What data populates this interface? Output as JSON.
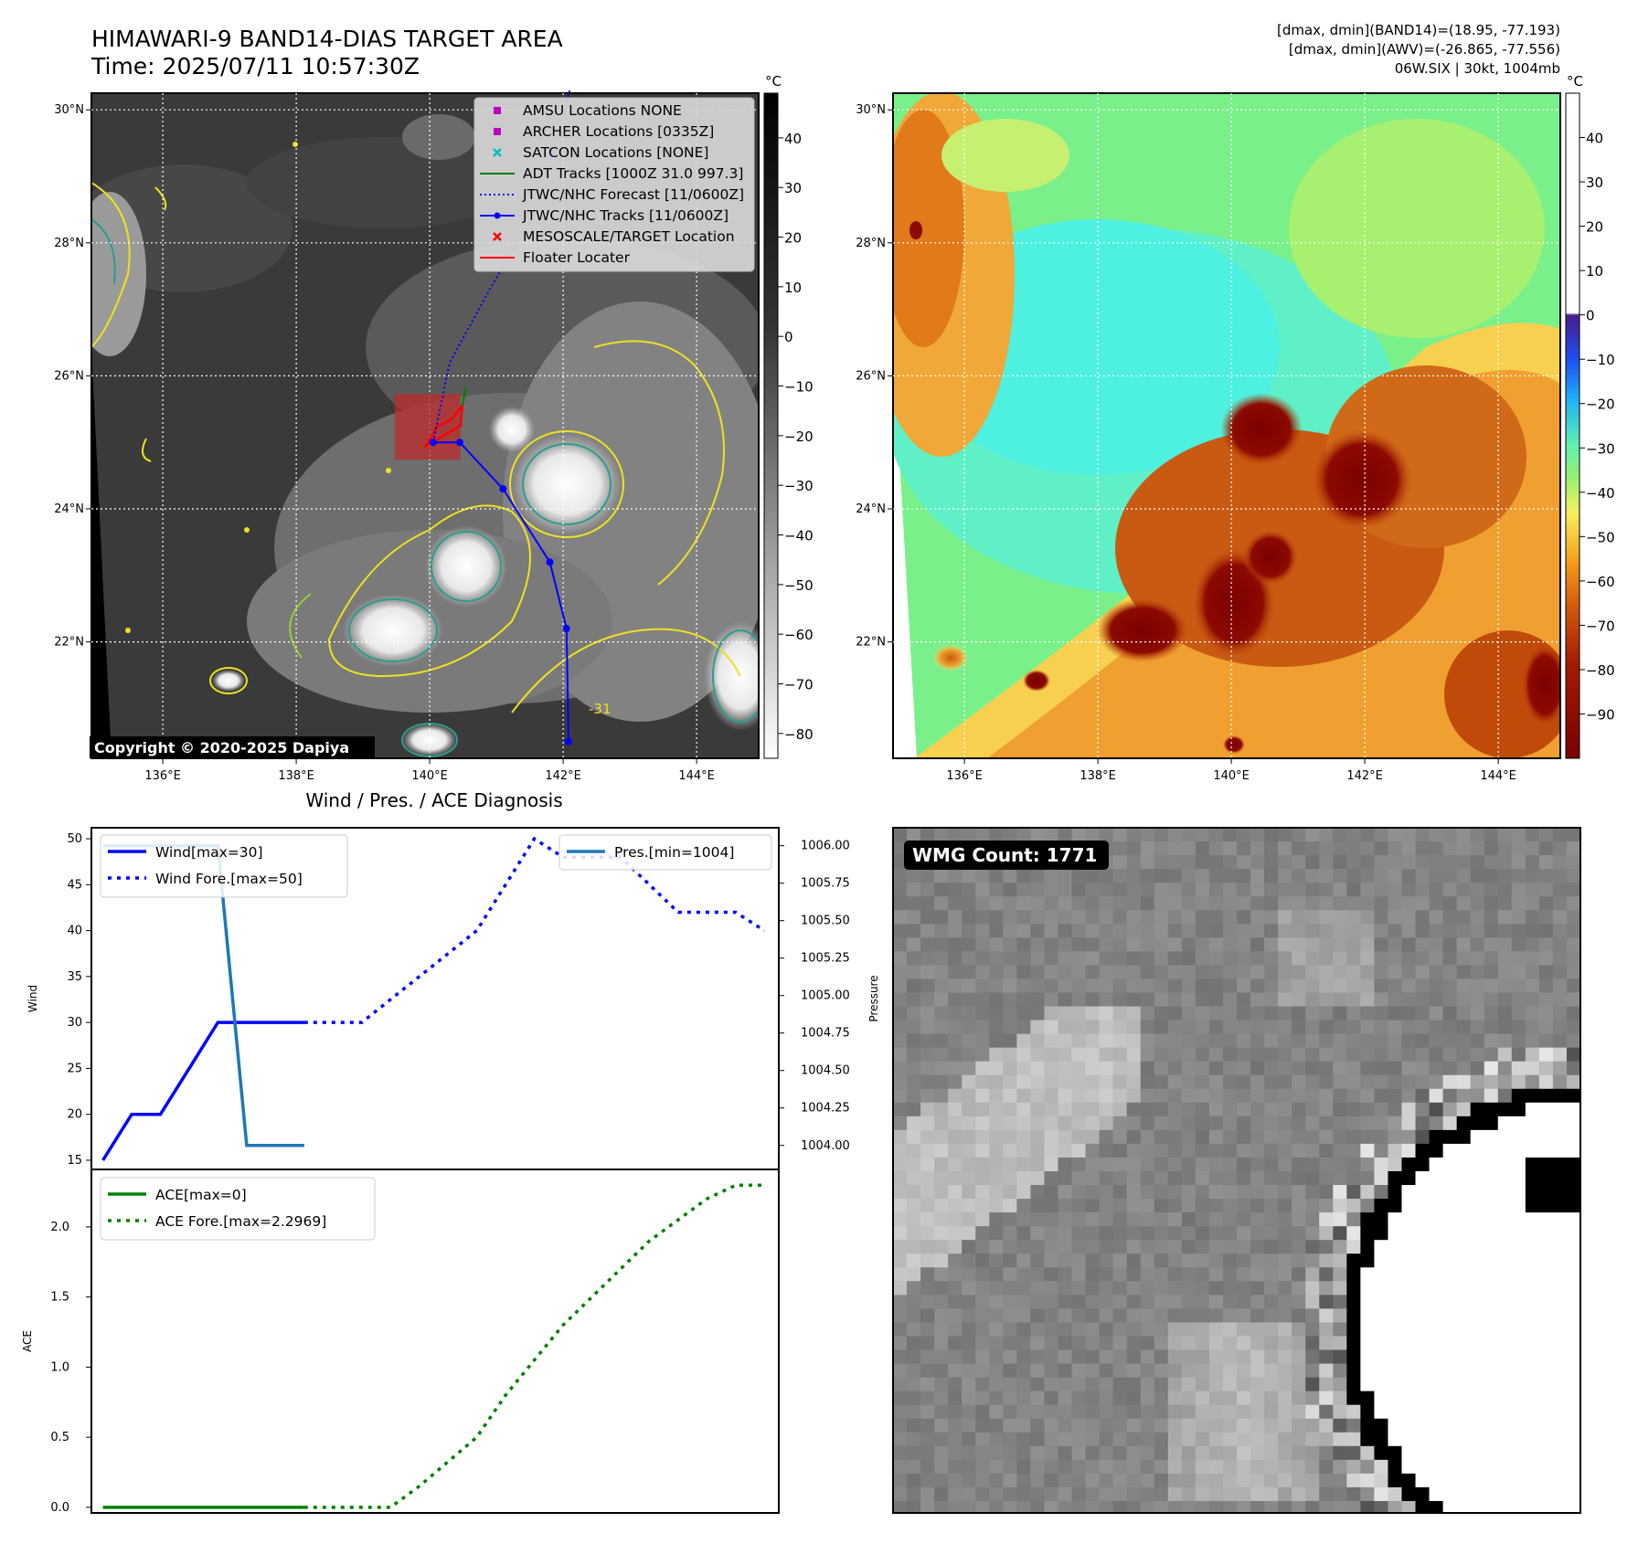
{
  "header": {
    "title_line1": "HIMAWARI-9 BAND14-DIAS TARGET AREA",
    "title_line2": "Time: 2025/07/11 10:57:30Z",
    "stats_line1": "[dmax, dmin](BAND14)=(18.95, -77.193)",
    "stats_line2": "[dmax, dmin](AWV)=(-26.865, -77.556)",
    "stats_line3": "06W.SIX | 30kt, 1004mb"
  },
  "maps": {
    "lat_labels": [
      "30°N",
      "28°N",
      "26°N",
      "24°N",
      "22°N"
    ],
    "lat_values": [
      30,
      28,
      26,
      24,
      22
    ],
    "lon_labels": [
      "136°E",
      "138°E",
      "140°E",
      "142°E",
      "144°E"
    ],
    "lon_values": [
      136,
      138,
      140,
      142,
      144
    ],
    "lon_range": [
      134.93,
      144.93
    ],
    "lat_range": [
      20.25,
      30.25
    ],
    "copyright": "Copyright © 2020-2025 Dapiya",
    "contour_label": "-31"
  },
  "colorbar_ir": {
    "unit": "°C",
    "tick_labels": [
      "40",
      "30",
      "20",
      "10",
      "0",
      "−10",
      "−20",
      "−30",
      "−40",
      "−50",
      "−60",
      "−70",
      "−80"
    ],
    "tick_values": [
      40,
      30,
      20,
      10,
      0,
      -10,
      -20,
      -30,
      -40,
      -50,
      -60,
      -70,
      -80
    ],
    "range": [
      -85,
      49
    ]
  },
  "colorbar_color": {
    "unit": "°C",
    "tick_labels": [
      "40",
      "30",
      "20",
      "10",
      "0",
      "−10",
      "−20",
      "−30",
      "−40",
      "−50",
      "−60",
      "−70",
      "−80",
      "−90"
    ],
    "tick_values": [
      40,
      30,
      20,
      10,
      0,
      -10,
      -20,
      -30,
      -40,
      -50,
      -60,
      -70,
      -80,
      -90
    ],
    "range": [
      -100,
      50
    ]
  },
  "legend": [
    {
      "label": "AMSU Locations NONE",
      "marker": "square",
      "color": "#bf00bf"
    },
    {
      "label": "ARCHER Locations [0335Z]",
      "marker": "square",
      "color": "#bf00bf"
    },
    {
      "label": "SATCON Locations [NONE]",
      "marker": "x",
      "color": "#00bfbf"
    },
    {
      "label": "ADT Tracks [1000Z 31.0 997.3]",
      "marker": "line",
      "color": "#008000"
    },
    {
      "label": "JTWC/NHC Forecast [11/0600Z]",
      "marker": "dotted",
      "color": "#0000ff"
    },
    {
      "label": "JTWC/NHC Tracks [11/0600Z]",
      "marker": "line-dot",
      "color": "#0000ff"
    },
    {
      "label": "MESOSCALE/TARGET Location",
      "marker": "x",
      "color": "#ff0000"
    },
    {
      "label": "Floater Locater",
      "marker": "line",
      "color": "#ff0000"
    }
  ],
  "track": {
    "lons": [
      142.08,
      142.05,
      141.8,
      141.1,
      140.45,
      140.05
    ],
    "lats": [
      20.5,
      22.2,
      23.2,
      24.3,
      25.0,
      25.0
    ],
    "forecast_lons": [
      140.05,
      140.3,
      140.9,
      141.6,
      141.9,
      142.1
    ],
    "forecast_lats": [
      25.0,
      26.2,
      27.3,
      28.5,
      29.5,
      30.3
    ]
  },
  "diagnosis": {
    "title": "Wind / Pres. / ACE Diagnosis",
    "ylabel_wind": "Wind",
    "ylabel_pressure": "Pressure",
    "ylabel_ace": "ACE",
    "wind_ticks": [
      15,
      20,
      25,
      30,
      35,
      40,
      45,
      50
    ],
    "pressure_ticks": [
      "1004.00",
      "1004.25",
      "1004.50",
      "1004.75",
      "1005.00",
      "1005.25",
      "1005.50",
      "1005.75",
      "1006.00"
    ],
    "pressure_values": [
      1004.0,
      1004.25,
      1004.5,
      1004.75,
      1005.0,
      1005.25,
      1005.5,
      1005.75,
      1006.0
    ],
    "ace_ticks": [
      "0.0",
      "0.5",
      "1.0",
      "1.5",
      "2.0"
    ],
    "ace_values": [
      0.0,
      0.5,
      1.0,
      1.5,
      2.0
    ]
  },
  "chart_data": [
    {
      "type": "line",
      "name": "wind-pressure",
      "x": [
        0,
        1,
        2,
        3,
        4,
        5,
        6,
        7
      ],
      "ylim": [
        14,
        51.2
      ],
      "y2lim": [
        1003.84,
        1006.12
      ],
      "xlim": [
        -0.4,
        23.5
      ],
      "series": [
        {
          "name": "Wind[max=30]",
          "axis": "left",
          "style": "solid",
          "color": "#0000ff",
          "x": [
            0,
            1,
            2,
            3,
            4,
            5,
            6,
            7
          ],
          "values": [
            15,
            20,
            20,
            25,
            30,
            30,
            30,
            30
          ]
        },
        {
          "name": "Wind Fore.[max=50]",
          "axis": "left",
          "style": "dotted",
          "color": "#0000ff",
          "x": [
            7,
            9,
            11,
            13,
            14,
            15,
            16,
            17,
            18,
            19,
            20,
            21,
            22,
            23
          ],
          "values": [
            30,
            30,
            35,
            40,
            45,
            50,
            48,
            48,
            48,
            45,
            42,
            42,
            42,
            40
          ]
        },
        {
          "name": "Pres.[min=1004]",
          "axis": "right",
          "style": "solid",
          "color": "#1f77b4",
          "x": [
            0,
            4,
            5,
            6,
            7
          ],
          "values": [
            1006,
            1006,
            1004,
            1004,
            1004
          ]
        }
      ]
    },
    {
      "type": "line",
      "name": "ace",
      "ylim": [
        -0.04,
        2.41
      ],
      "xlim": [
        -0.4,
        23.5
      ],
      "series": [
        {
          "name": "ACE[max=0]",
          "style": "solid",
          "color": "#008000",
          "x": [
            0,
            7
          ],
          "values": [
            0,
            0
          ]
        },
        {
          "name": "ACE Fore.[max=2.2969]",
          "style": "dotted",
          "color": "#008000",
          "x": [
            7,
            10,
            11,
            13,
            14,
            15,
            16,
            17,
            18,
            19,
            20,
            21,
            22,
            23
          ],
          "values": [
            0,
            0,
            0.15,
            0.5,
            0.8,
            1.05,
            1.3,
            1.5,
            1.7,
            1.9,
            2.05,
            2.2,
            2.297,
            2.297
          ]
        }
      ]
    }
  ],
  "wmg": {
    "label": "WMG Count: 1771"
  }
}
